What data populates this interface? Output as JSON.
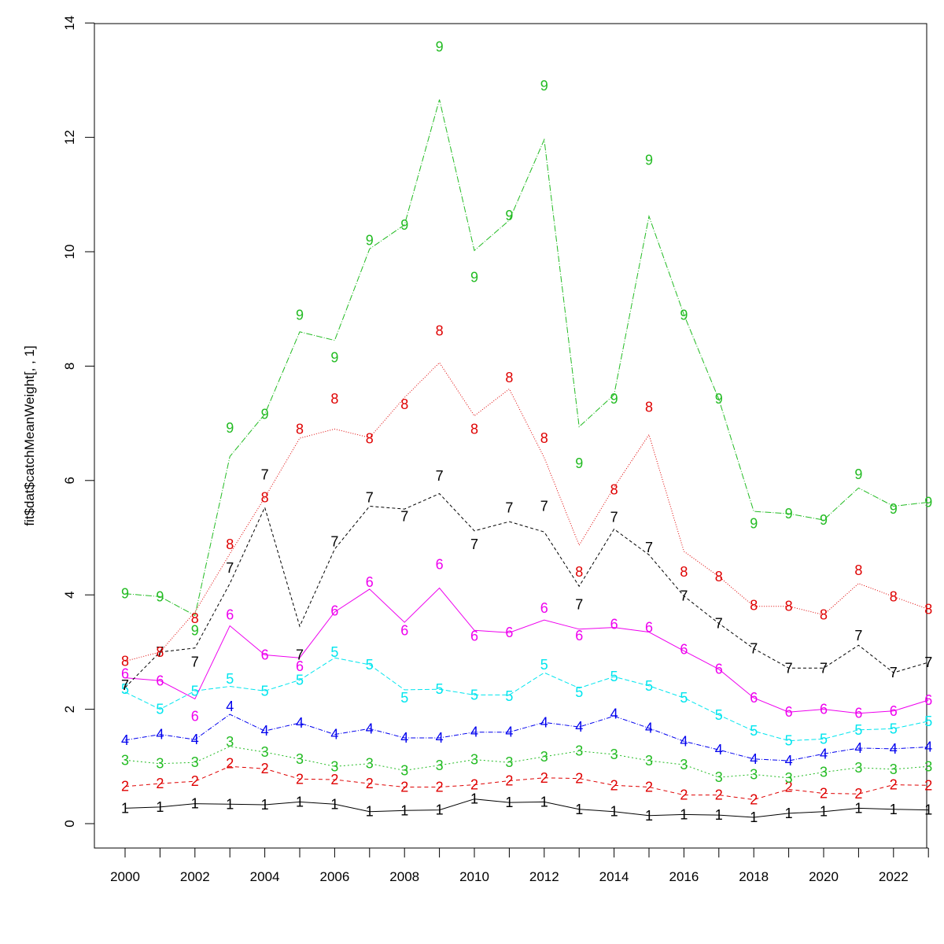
{
  "chart_data": {
    "type": "line",
    "title": "",
    "xlabel": "",
    "ylabel": "fit$dat$catchMeanWeight[, , 1]",
    "xlim": [
      2000,
      2023
    ],
    "ylim": [
      0,
      14
    ],
    "x_ticks": [
      "2000",
      "2002",
      "2004",
      "2006",
      "2008",
      "2010",
      "2012",
      "2014",
      "2016",
      "2018",
      "2020",
      "2022"
    ],
    "y_ticks": [
      "0",
      "2",
      "4",
      "6",
      "8",
      "10",
      "12",
      "14"
    ],
    "grid": false,
    "legend": "none",
    "x": [
      2000,
      2001,
      2002,
      2003,
      2004,
      2005,
      2006,
      2007,
      2008,
      2009,
      2010,
      2011,
      2012,
      2013,
      2014,
      2015,
      2016,
      2017,
      2018,
      2019,
      2020,
      2021,
      2022,
      2023
    ],
    "series": [
      {
        "label": "1",
        "color": "#000000",
        "dash": "",
        "line": [
          0.27,
          0.29,
          0.35,
          0.34,
          0.33,
          0.38,
          0.34,
          0.21,
          0.23,
          0.24,
          0.43,
          0.37,
          0.38,
          0.25,
          0.21,
          0.14,
          0.16,
          0.15,
          0.11,
          0.18,
          0.21,
          0.27,
          0.25,
          0.24
        ],
        "points": [
          0.27,
          0.29,
          0.35,
          0.34,
          0.33,
          0.38,
          0.34,
          0.21,
          0.23,
          0.24,
          0.43,
          0.37,
          0.38,
          0.25,
          0.21,
          0.14,
          0.16,
          0.15,
          0.11,
          0.18,
          0.21,
          0.27,
          0.25,
          0.24
        ]
      },
      {
        "label": "2",
        "color": "#df0000",
        "dash": "5,4",
        "line": [
          0.65,
          0.7,
          0.74,
          1.0,
          0.96,
          0.78,
          0.77,
          0.7,
          0.64,
          0.64,
          0.68,
          0.75,
          0.8,
          0.79,
          0.67,
          0.64,
          0.5,
          0.5,
          0.42,
          0.6,
          0.53,
          0.52,
          0.68,
          0.67
        ],
        "points": [
          0.65,
          0.7,
          0.74,
          1.05,
          0.96,
          0.78,
          0.77,
          0.7,
          0.64,
          0.64,
          0.68,
          0.75,
          0.8,
          0.79,
          0.67,
          0.64,
          0.5,
          0.5,
          0.42,
          0.64,
          0.53,
          0.52,
          0.68,
          0.67
        ]
      },
      {
        "label": "3",
        "color": "#22bb22",
        "dash": "2,3",
        "line": [
          1.11,
          1.05,
          1.07,
          1.35,
          1.25,
          1.13,
          1.0,
          1.05,
          0.93,
          1.02,
          1.12,
          1.07,
          1.17,
          1.27,
          1.21,
          1.1,
          1.03,
          0.81,
          0.86,
          0.8,
          0.9,
          0.98,
          0.95,
          1.0
        ],
        "points": [
          1.11,
          1.05,
          1.07,
          1.43,
          1.25,
          1.13,
          1.0,
          1.05,
          0.93,
          1.02,
          1.12,
          1.07,
          1.17,
          1.27,
          1.21,
          1.1,
          1.03,
          0.81,
          0.86,
          0.8,
          0.9,
          0.98,
          0.95,
          1.0
        ]
      },
      {
        "label": "4",
        "color": "#0000ee",
        "dash": "6,2,1,2",
        "line": [
          1.46,
          1.56,
          1.47,
          1.91,
          1.62,
          1.76,
          1.56,
          1.66,
          1.5,
          1.5,
          1.6,
          1.6,
          1.77,
          1.69,
          1.88,
          1.67,
          1.44,
          1.29,
          1.13,
          1.1,
          1.22,
          1.32,
          1.31,
          1.34
        ],
        "points": [
          1.46,
          1.56,
          1.47,
          2.05,
          1.62,
          1.76,
          1.56,
          1.66,
          1.5,
          1.5,
          1.6,
          1.6,
          1.77,
          1.69,
          1.92,
          1.67,
          1.44,
          1.29,
          1.13,
          1.1,
          1.22,
          1.32,
          1.31,
          1.34
        ]
      },
      {
        "label": "5",
        "color": "#00e5ee",
        "dash": "6,3",
        "line": [
          2.3,
          2.0,
          2.32,
          2.4,
          2.32,
          2.51,
          2.9,
          2.78,
          2.34,
          2.35,
          2.25,
          2.25,
          2.64,
          2.37,
          2.57,
          2.41,
          2.2,
          1.9,
          1.62,
          1.45,
          1.48,
          1.64,
          1.66,
          1.79
        ],
        "points": [
          2.35,
          2.0,
          2.32,
          2.53,
          2.32,
          2.51,
          3.0,
          2.78,
          2.2,
          2.35,
          2.25,
          2.23,
          2.78,
          2.3,
          2.57,
          2.41,
          2.2,
          1.9,
          1.62,
          1.45,
          1.48,
          1.64,
          1.66,
          1.79
        ]
      },
      {
        "label": "6",
        "color": "#ee00ee",
        "dash": "",
        "line": [
          2.55,
          2.5,
          2.18,
          3.46,
          2.95,
          2.9,
          3.7,
          4.1,
          3.52,
          4.12,
          3.38,
          3.34,
          3.56,
          3.4,
          3.43,
          3.35,
          3.02,
          2.7,
          2.2,
          1.95,
          2.0,
          1.93,
          1.97,
          2.16
        ],
        "points": [
          2.62,
          2.5,
          1.88,
          3.65,
          2.95,
          2.75,
          3.72,
          4.22,
          3.38,
          4.53,
          3.28,
          3.34,
          3.77,
          3.29,
          3.49,
          3.43,
          3.05,
          2.7,
          2.2,
          1.95,
          2.0,
          1.93,
          1.97,
          2.16
        ]
      },
      {
        "label": "7",
        "color": "#000000",
        "dash": "4,3",
        "line": [
          2.38,
          3.0,
          3.07,
          4.2,
          5.53,
          3.45,
          4.8,
          5.55,
          5.5,
          5.77,
          5.12,
          5.28,
          5.1,
          4.15,
          5.15,
          4.7,
          3.98,
          3.5,
          3.06,
          2.72,
          2.72,
          3.12,
          2.64,
          2.82
        ],
        "points": [
          2.42,
          3.0,
          2.83,
          4.47,
          6.1,
          2.95,
          4.93,
          5.7,
          5.37,
          6.08,
          4.88,
          5.52,
          5.55,
          3.83,
          5.36,
          4.83,
          3.98,
          3.5,
          3.06,
          2.72,
          2.72,
          3.29,
          2.64,
          2.82
        ]
      },
      {
        "label": "8",
        "color": "#df0000",
        "dash": "1,2",
        "line": [
          2.84,
          3.0,
          3.7,
          4.72,
          5.7,
          6.74,
          6.9,
          6.75,
          7.45,
          8.06,
          7.13,
          7.6,
          6.4,
          4.87,
          5.88,
          6.8,
          4.76,
          4.32,
          3.8,
          3.8,
          3.65,
          4.2,
          3.97,
          3.75
        ],
        "points": [
          2.84,
          3.0,
          3.59,
          4.88,
          5.7,
          6.9,
          7.43,
          6.73,
          7.33,
          8.62,
          6.9,
          7.8,
          6.74,
          4.4,
          5.84,
          7.28,
          4.4,
          4.32,
          3.82,
          3.8,
          3.65,
          4.43,
          3.97,
          3.75
        ]
      },
      {
        "label": "9",
        "color": "#22bb22",
        "dash": "8,2,1,2",
        "line": [
          4.02,
          3.97,
          3.64,
          6.42,
          7.16,
          8.6,
          8.45,
          10.05,
          10.47,
          12.66,
          10.02,
          10.55,
          11.96,
          6.94,
          7.5,
          10.62,
          8.9,
          7.42,
          5.46,
          5.42,
          5.31,
          5.87,
          5.55,
          5.62
        ],
        "points": [
          4.02,
          3.97,
          3.38,
          6.92,
          7.16,
          8.89,
          8.15,
          10.2,
          10.47,
          13.58,
          9.55,
          10.63,
          12.9,
          6.3,
          7.43,
          11.6,
          8.89,
          7.43,
          5.25,
          5.42,
          5.31,
          6.11,
          5.5,
          5.62
        ]
      }
    ]
  }
}
